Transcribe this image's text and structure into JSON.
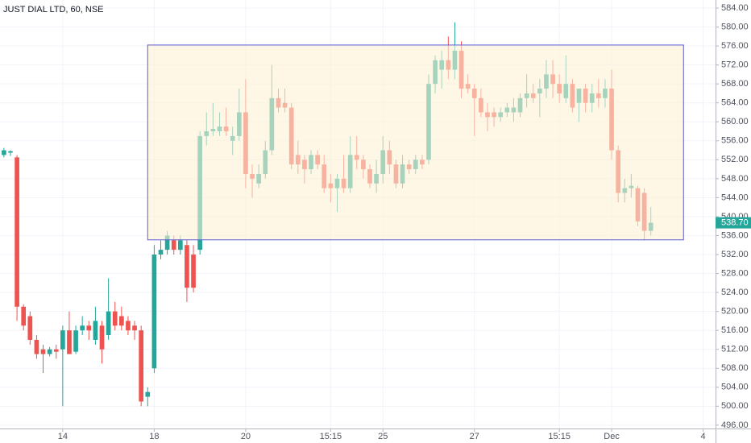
{
  "chart_data": {
    "type": "candlestick",
    "title": "JUST DIAL LTD, 60, NSE",
    "up_color": "#26a69a",
    "down_color": "#ef5350",
    "grid": true,
    "xlim": [
      -0.6,
      108.9
    ],
    "xticks": [
      {
        "value": 9,
        "label": "14"
      },
      {
        "value": 23,
        "label": "18"
      },
      {
        "value": 37,
        "label": "20"
      },
      {
        "value": 50,
        "label": "15:15"
      },
      {
        "value": 58,
        "label": "25"
      },
      {
        "value": 72,
        "label": "27"
      },
      {
        "value": 85,
        "label": "15:15"
      },
      {
        "value": 93,
        "label": "Dec"
      },
      {
        "value": 107,
        "label": "4"
      }
    ],
    "ylim": [
      495.3,
      585.7
    ],
    "yticks": [
      {
        "value": 496,
        "label": "496.00"
      },
      {
        "value": 500,
        "label": "500.00"
      },
      {
        "value": 504,
        "label": "504.00"
      },
      {
        "value": 508,
        "label": "508.00"
      },
      {
        "value": 512,
        "label": "512.00"
      },
      {
        "value": 516,
        "label": "516.00"
      },
      {
        "value": 520,
        "label": "520.00"
      },
      {
        "value": 524,
        "label": "524.00"
      },
      {
        "value": 528,
        "label": "528.00"
      },
      {
        "value": 532,
        "label": "532.00"
      },
      {
        "value": 536,
        "label": "536.00"
      },
      {
        "value": 540,
        "label": "540.00"
      },
      {
        "value": 544,
        "label": "544.00"
      },
      {
        "value": 548,
        "label": "548.00"
      },
      {
        "value": 552,
        "label": "552.00"
      },
      {
        "value": 556,
        "label": "556.00"
      },
      {
        "value": 560,
        "label": "560.00"
      },
      {
        "value": 564,
        "label": "564.00"
      },
      {
        "value": 568,
        "label": "568.00"
      },
      {
        "value": 572,
        "label": "572.00"
      },
      {
        "value": 576,
        "label": "576.00"
      },
      {
        "value": 580,
        "label": "580.00"
      },
      {
        "value": 584,
        "label": "584.00"
      }
    ],
    "last_price": {
      "value": 538.7,
      "label": "538.70"
    },
    "zone": {
      "start": 22,
      "end": 104,
      "top": 576.2,
      "bottom": 535.1,
      "fill": "#fdf1d6",
      "border": "#5b5bd6"
    },
    "open": [
      553,
      553.5,
      552.5,
      521,
      519,
      514,
      512,
      511,
      512,
      512,
      516,
      511.5,
      516,
      517,
      514,
      517,
      515,
      520,
      519,
      518,
      517,
      516,
      502,
      508,
      532,
      533,
      535,
      533,
      534,
      532,
      533,
      557,
      558,
      558,
      559,
      556,
      557,
      562,
      549,
      547,
      549,
      554,
      565,
      564,
      563,
      553,
      552,
      550,
      553,
      551,
      547,
      546,
      548,
      546,
      553,
      552,
      550,
      547,
      549,
      554,
      551,
      547,
      551,
      550,
      552,
      552,
      568,
      571,
      573,
      571,
      575,
      568,
      567,
      565,
      562,
      562,
      561,
      562,
      562,
      562,
      565,
      566,
      566,
      567,
      570,
      568,
      565,
      568,
      564,
      567,
      564,
      566,
      565,
      567,
      554,
      545,
      546,
      546,
      545,
      537
    ],
    "high": [
      554.5,
      554,
      553,
      521.5,
      520,
      515,
      513,
      512.5,
      513,
      517,
      520,
      517,
      519,
      518,
      521,
      518,
      527,
      522,
      521,
      519,
      518,
      517,
      504,
      534,
      535,
      537,
      536,
      536,
      535,
      534,
      558,
      562,
      564,
      562,
      563,
      559,
      567,
      569,
      551,
      551,
      556,
      572,
      567,
      567,
      564,
      556,
      553,
      554,
      554,
      553,
      549,
      549,
      553,
      557,
      557,
      553,
      551,
      552,
      557,
      556,
      552,
      553,
      552,
      553,
      553,
      570,
      574,
      575,
      578,
      581,
      577,
      570,
      568,
      567,
      564,
      563,
      563,
      564,
      565,
      566,
      570,
      568,
      569,
      573,
      573,
      570,
      574,
      569,
      567,
      568,
      568,
      569,
      569,
      571,
      555,
      548,
      549,
      546.5,
      546,
      542
    ],
    "low": [
      552.5,
      552.8,
      518,
      516,
      513,
      510,
      507,
      510.5,
      510,
      500,
      511,
      511,
      515,
      514,
      513,
      509,
      514,
      516,
      516,
      515,
      514,
      500,
      500,
      507,
      531,
      532,
      532,
      532,
      522,
      524,
      532,
      555,
      557,
      557,
      557,
      553,
      556,
      546,
      544,
      546,
      548,
      553,
      562,
      562,
      550,
      549,
      547,
      549,
      550,
      545,
      543,
      541,
      545,
      545,
      550,
      548,
      546,
      545,
      547,
      549,
      546,
      546,
      549,
      549,
      550,
      551,
      566,
      567,
      569,
      569,
      565,
      566,
      557,
      561,
      558,
      559,
      560,
      561,
      560,
      561,
      563,
      564,
      561,
      565,
      565,
      564,
      564,
      562,
      560,
      562,
      562,
      563,
      563,
      552,
      543,
      543,
      544,
      538,
      535,
      536
    ],
    "close": [
      554,
      553.8,
      521,
      517,
      514,
      511,
      511,
      512,
      511.5,
      516,
      511,
      516,
      517,
      516,
      518,
      512,
      520,
      517,
      517,
      516,
      516,
      501,
      503,
      532,
      533,
      536,
      533,
      535,
      525,
      525,
      557,
      558,
      558.5,
      559,
      558,
      557,
      562,
      549,
      548,
      549,
      554,
      565,
      563,
      563,
      551,
      551,
      550,
      553,
      551,
      546,
      546,
      548,
      546,
      553,
      552,
      550,
      547,
      549,
      554,
      551,
      547,
      551,
      550,
      552,
      551,
      568,
      573,
      573,
      571,
      575,
      567,
      567,
      565,
      562,
      561,
      561,
      562,
      563,
      563,
      565,
      566,
      565,
      567,
      570,
      568,
      566,
      568,
      563,
      567,
      564,
      566,
      565,
      567,
      554,
      545,
      546,
      546.5,
      539,
      537,
      538.7
    ]
  }
}
